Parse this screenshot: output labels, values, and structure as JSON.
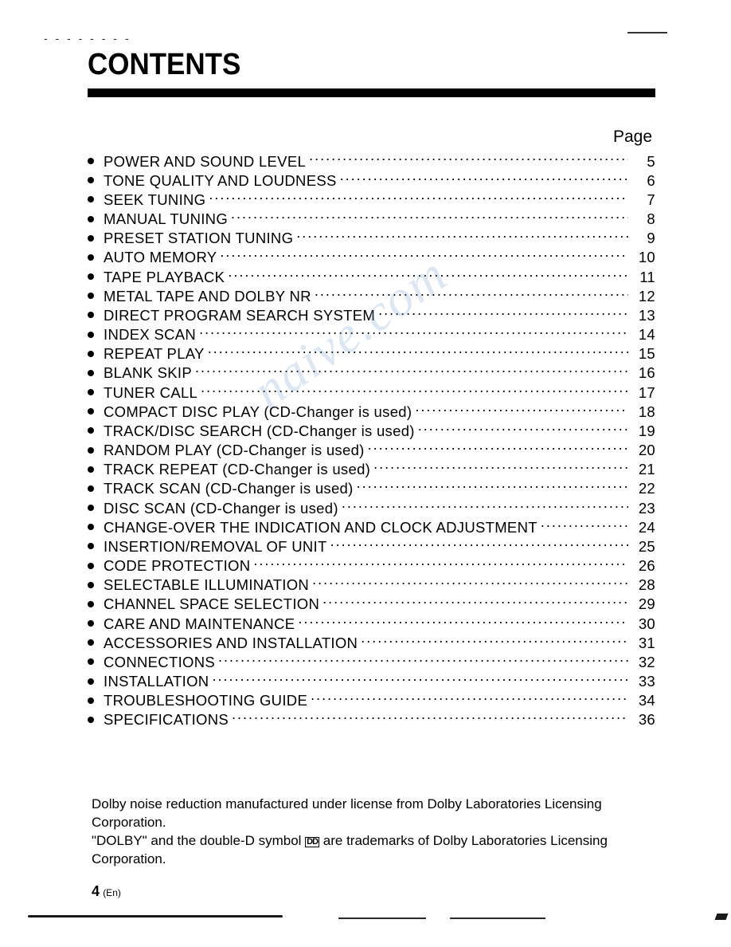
{
  "title": "CONTENTS",
  "page_header": "Page",
  "watermark_text": "naive.com",
  "colors": {
    "text": "#000000",
    "background": "#ffffff",
    "watermark": "rgba(120,160,210,0.25)",
    "rule": "#000000"
  },
  "typography": {
    "title_fontsize_pt": 29,
    "title_weight": 900,
    "body_fontsize_pt": 14,
    "line_height": 1.28,
    "font_family": "Arial"
  },
  "toc": [
    {
      "title": "POWER AND SOUND LEVEL",
      "page": "5"
    },
    {
      "title": "TONE QUALITY AND LOUDNESS",
      "page": "6"
    },
    {
      "title": "SEEK TUNING",
      "page": "7"
    },
    {
      "title": "MANUAL TUNING",
      "page": "8"
    },
    {
      "title": "PRESET STATION TUNING",
      "page": "9"
    },
    {
      "title": "AUTO MEMORY",
      "page": "10"
    },
    {
      "title": "TAPE PLAYBACK",
      "page": "11"
    },
    {
      "title": "METAL TAPE AND DOLBY NR",
      "page": "12"
    },
    {
      "title": "DIRECT PROGRAM SEARCH SYSTEM",
      "page": "13"
    },
    {
      "title": "INDEX SCAN",
      "page": "14"
    },
    {
      "title": "REPEAT PLAY",
      "page": "15"
    },
    {
      "title": "BLANK SKIP",
      "page": "16"
    },
    {
      "title": "TUNER CALL",
      "page": "17"
    },
    {
      "title": "COMPACT DISC PLAY (CD-Changer is used)",
      "page": "18"
    },
    {
      "title": "TRACK/DISC SEARCH (CD-Changer is used)",
      "page": "19"
    },
    {
      "title": "RANDOM PLAY (CD-Changer is used)",
      "page": "20"
    },
    {
      "title": "TRACK REPEAT (CD-Changer is used)",
      "page": "21"
    },
    {
      "title": "TRACK SCAN (CD-Changer is used)",
      "page": "22"
    },
    {
      "title": "DISC SCAN (CD-Changer is used)",
      "page": "23"
    },
    {
      "title": "CHANGE-OVER THE INDICATION AND CLOCK ADJUSTMENT",
      "page": "24"
    },
    {
      "title": "INSERTION/REMOVAL OF UNIT",
      "page": "25"
    },
    {
      "title": "CODE PROTECTION",
      "page": "26"
    },
    {
      "title": "SELECTABLE ILLUMINATION",
      "page": "28"
    },
    {
      "title": "CHANNEL SPACE SELECTION",
      "page": "29"
    },
    {
      "title": "CARE AND MAINTENANCE",
      "page": "30"
    },
    {
      "title": "ACCESSORIES AND INSTALLATION",
      "page": "31"
    },
    {
      "title": "CONNECTIONS",
      "page": "32"
    },
    {
      "title": "INSTALLATION",
      "page": "33"
    },
    {
      "title": "TROUBLESHOOTING GUIDE",
      "page": "34"
    },
    {
      "title": "SPECIFICATIONS",
      "page": "36"
    }
  ],
  "footnote_line1": "Dolby noise reduction manufactured under license from Dolby Laboratories Licensing Corporation.",
  "footnote_line2_a": "\"DOLBY\" and the double-D symbol ",
  "footnote_line2_b": " are trademarks of Dolby Laboratories Licensing Corporation.",
  "dd_symbol_text": "DD",
  "page_number": "4",
  "page_lang": "(En)",
  "dashes": "- - - - - - - -"
}
